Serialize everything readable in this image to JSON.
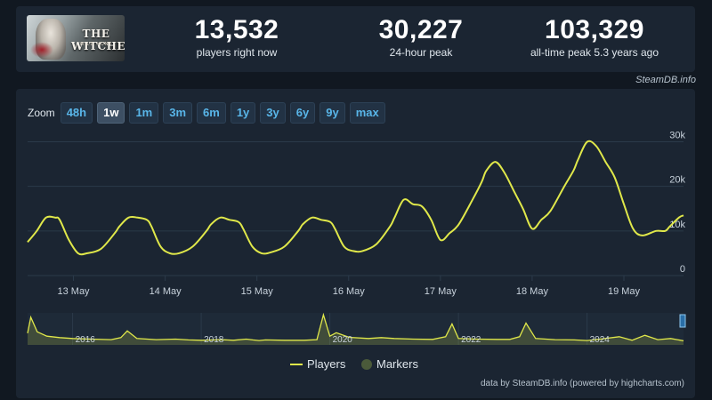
{
  "header": {
    "game_cover": {
      "title": "THE WITCHER",
      "subtitle": "WILD HUNT"
    },
    "stats": [
      {
        "value": "13,532",
        "label": "players right now"
      },
      {
        "value": "30,227",
        "label": "24-hour peak"
      },
      {
        "value": "103,329",
        "label": "all-time peak 5.3 years ago"
      }
    ]
  },
  "attribution_top": "SteamDB.info",
  "zoom": {
    "label": "Zoom",
    "options": [
      "48h",
      "1w",
      "1m",
      "3m",
      "6m",
      "1y",
      "3y",
      "6y",
      "9y",
      "max"
    ],
    "active": "1w"
  },
  "legend": {
    "players": "Players",
    "markers": "Markers"
  },
  "attribution_bottom": "data by SteamDB.info (powered by highcharts.com)",
  "colors": {
    "line": "#e0e84a",
    "marker": "#4a5a3a",
    "grid": "#2b3a4a",
    "text": "#c8d2dc"
  },
  "chart_data": [
    {
      "type": "line",
      "title": "",
      "series": [
        {
          "name": "Players",
          "x": [
            0,
            0.1,
            0.2,
            0.3,
            0.35,
            0.45,
            0.55,
            0.65,
            0.8,
            0.95,
            1.0,
            1.1,
            1.2,
            1.3,
            1.35,
            1.45,
            1.55,
            1.65,
            1.8,
            1.95,
            2.0,
            2.1,
            2.2,
            2.3,
            2.35,
            2.45,
            2.55,
            2.65,
            2.8,
            2.95,
            3.0,
            3.1,
            3.2,
            3.3,
            3.35,
            3.45,
            3.55,
            3.65,
            3.8,
            3.95,
            4.0,
            4.1,
            4.2,
            4.3,
            4.4,
            4.5,
            4.6,
            4.7,
            4.85,
            4.95,
            5.0,
            5.1,
            5.2,
            5.3,
            5.4,
            5.5,
            5.6,
            5.7,
            5.85,
            5.95,
            6.0,
            6.1,
            6.2,
            6.3,
            6.4,
            6.5,
            6.6,
            6.7,
            6.85,
            6.95,
            7.0,
            7.1,
            7.15
          ],
          "y": [
            7500,
            10000,
            13000,
            13000,
            12500,
            8000,
            5000,
            5000,
            6000,
            9500,
            11000,
            13000,
            13000,
            12500,
            11000,
            6500,
            5000,
            5000,
            6500,
            10000,
            11500,
            13000,
            12500,
            12000,
            10500,
            6500,
            5000,
            5200,
            6500,
            10000,
            11500,
            13000,
            12500,
            12000,
            10500,
            6500,
            5500,
            5500,
            7000,
            11000,
            13000,
            17000,
            16000,
            15500,
            12500,
            8000,
            9500,
            11500,
            17000,
            21000,
            23500,
            25500,
            23000,
            19000,
            15000,
            10500,
            12500,
            14500,
            20000,
            23500,
            26000,
            30000,
            29000,
            25500,
            22000,
            16000,
            10500,
            9000,
            10000,
            10000,
            11000,
            13000,
            13500
          ]
        }
      ],
      "x_ticks": [
        {
          "x": 0.5,
          "label": "13 May"
        },
        {
          "x": 1.5,
          "label": "14 May"
        },
        {
          "x": 2.5,
          "label": "15 May"
        },
        {
          "x": 3.5,
          "label": "16 May"
        },
        {
          "x": 4.5,
          "label": "17 May"
        },
        {
          "x": 5.5,
          "label": "18 May"
        },
        {
          "x": 6.5,
          "label": "19 May"
        }
      ],
      "y_ticks": [
        {
          "y": 0,
          "label": "0"
        },
        {
          "y": 10000,
          "label": "10k"
        },
        {
          "y": 20000,
          "label": "20k"
        },
        {
          "y": 30000,
          "label": "30k"
        }
      ],
      "xlim": [
        0,
        7.15
      ],
      "ylim": [
        0,
        31500
      ],
      "grid": true
    },
    {
      "type": "area",
      "title": "",
      "series": [
        {
          "name": "Players",
          "x": [
            2015.3,
            2015.35,
            2015.45,
            2015.6,
            2015.8,
            2016.0,
            2016.3,
            2016.6,
            2016.75,
            2016.85,
            2017.0,
            2017.3,
            2017.6,
            2017.8,
            2018.0,
            2018.3,
            2018.5,
            2018.7,
            2018.8,
            2018.9,
            2019.0,
            2019.3,
            2019.6,
            2019.8,
            2019.9,
            2020.0,
            2020.1,
            2020.3,
            2020.6,
            2020.8,
            2021.0,
            2021.3,
            2021.6,
            2021.8,
            2021.9,
            2022.0,
            2022.3,
            2022.6,
            2022.8,
            2022.95,
            2023.05,
            2023.2,
            2023.5,
            2023.8,
            2024.0,
            2024.2,
            2024.5,
            2024.7,
            2024.9,
            2025.1,
            2025.3,
            2025.5
          ],
          "y": [
            40000,
            95000,
            45000,
            30000,
            25000,
            22000,
            20000,
            18000,
            25000,
            48000,
            22000,
            18000,
            20000,
            17000,
            16000,
            18000,
            16000,
            20000,
            17000,
            15000,
            17000,
            16000,
            16000,
            18000,
            103329,
            30000,
            42000,
            26000,
            22000,
            25000,
            22000,
            20000,
            19000,
            28000,
            72000,
            22000,
            20000,
            19000,
            19000,
            28000,
            75000,
            22000,
            18000,
            17000,
            15000,
            20000,
            28000,
            16000,
            33000,
            18000,
            22000,
            14000
          ]
        }
      ],
      "x_ticks": [
        {
          "x": 2016,
          "label": "2016"
        },
        {
          "x": 2018,
          "label": "2018"
        },
        {
          "x": 2020,
          "label": "2020"
        },
        {
          "x": 2022,
          "label": "2022"
        },
        {
          "x": 2024,
          "label": "2024"
        }
      ],
      "xlim": [
        2015.3,
        2025.5
      ],
      "ylim": [
        0,
        110000
      ],
      "legend_position": "bottom"
    }
  ]
}
